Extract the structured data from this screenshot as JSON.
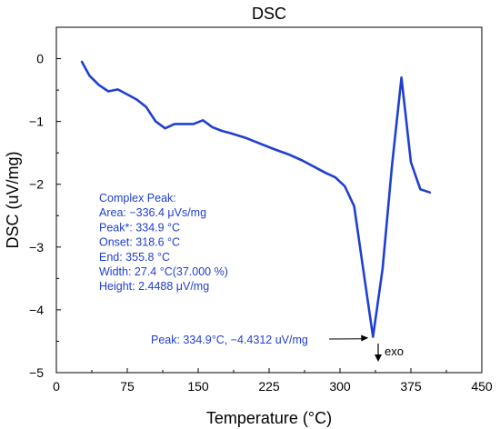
{
  "chart_data": {
    "type": "line",
    "title": "DSC",
    "xlabel": "Temperature (°C)",
    "ylabel": "DSC (uV/mg)",
    "xlim": [
      0,
      450
    ],
    "ylim": [
      -5,
      0.5
    ],
    "xticks": [
      0,
      75,
      150,
      225,
      300,
      375,
      450
    ],
    "xtick_labels": [
      "0",
      "75",
      "150",
      "225",
      "300",
      "375",
      "450"
    ],
    "yticks": [
      0,
      -1,
      -2,
      -3,
      -4,
      -5
    ],
    "ytick_labels": [
      "0",
      "−1",
      "−2",
      "−3",
      "−4",
      "−5"
    ],
    "grid": false,
    "line_color": "#1f3fd1",
    "series": [
      {
        "x": [
          27,
          35,
          45,
          55,
          65,
          75,
          85,
          95,
          105,
          115,
          125,
          135,
          145,
          155,
          165,
          175,
          185,
          200,
          215,
          230,
          245,
          260,
          275,
          285,
          295,
          305,
          315,
          325,
          334.9,
          345,
          355,
          365,
          375,
          385,
          395
        ],
        "y": [
          -0.05,
          -0.27,
          -0.42,
          -0.52,
          -0.49,
          -0.57,
          -0.65,
          -0.77,
          -1.0,
          -1.11,
          -1.04,
          -1.04,
          -1.04,
          -0.98,
          -1.09,
          -1.15,
          -1.19,
          -1.26,
          -1.35,
          -1.44,
          -1.52,
          -1.62,
          -1.74,
          -1.82,
          -1.89,
          -2.03,
          -2.35,
          -3.4,
          -4.43,
          -3.35,
          -1.7,
          -0.3,
          -1.65,
          -2.08,
          -2.13
        ]
      }
    ],
    "annotation_box": {
      "lines": [
        "Complex Peak:",
        "Area: −336.4 μVs/mg",
        "Peak*: 334.9 °C",
        "Onset: 318.6 °C",
        "End: 355.8 °C",
        "Width: 27.4 °C(37.000 %)",
        "Height: 2.4488 μV/mg"
      ]
    },
    "peak_label": {
      "text": "Peak: 334.9°C, −4.4312 uV/mg",
      "x": 334.9,
      "y": -4.4312
    },
    "exo_label": {
      "text": "exo"
    }
  }
}
